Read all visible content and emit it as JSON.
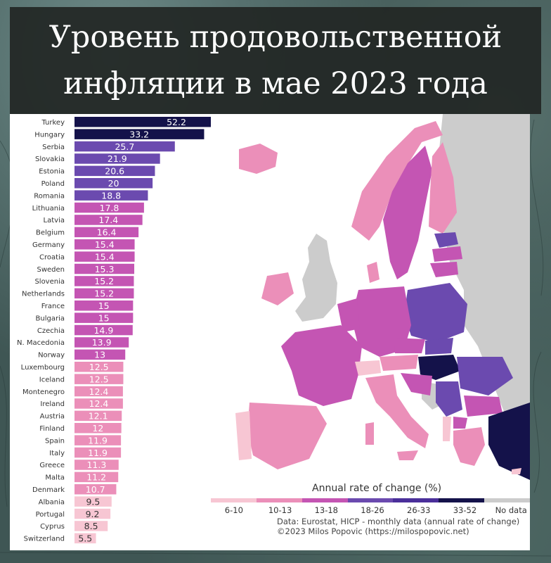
{
  "title": {
    "line1": "Уровень продовольственной",
    "line2": "инфляции в мае 2023 года"
  },
  "colors": {
    "bin_6_10": "#f7c6d3",
    "bin_10_13": "#eb8fb9",
    "bin_13_18": "#c455b3",
    "bin_18_26": "#6b4aaf",
    "bin_26_33": "#4a2f9a",
    "bin_33_52": "#14124a",
    "no_data": "#cccccc"
  },
  "chart_data": {
    "type": "bar",
    "orientation": "horizontal",
    "categories": [
      "Turkey",
      "Hungary",
      "Serbia",
      "Slovakia",
      "Estonia",
      "Poland",
      "Romania",
      "Lithuania",
      "Latvia",
      "Belgium",
      "Germany",
      "Croatia",
      "Sweden",
      "Slovenia",
      "Netherlands",
      "France",
      "Bulgaria",
      "Czechia",
      "N. Macedonia",
      "Norway",
      "Luxembourg",
      "Iceland",
      "Montenegro",
      "Ireland",
      "Austria",
      "Finland",
      "Spain",
      "Italy",
      "Greece",
      "Malta",
      "Denmark",
      "Albania",
      "Portugal",
      "Cyprus",
      "Switzerland"
    ],
    "category_labels": [
      "Turkey",
      "Hungary",
      "Serbia",
      "Slovakia",
      "Estonia",
      "Poland",
      "Romania",
      "Lithuania",
      "Latvia",
      "Belgium",
      "Germany",
      "Croatia",
      "Sweden",
      "Slovenia",
      "Netherlands",
      "France",
      "Bulgaria",
      "Czechia",
      "N. Macedonia",
      "Norway",
      "Luxembourg",
      "Iceland",
      "Montenegro",
      "Ireland",
      "Austria",
      "Finland",
      "Spain",
      "Italy",
      "Greece",
      "Malta",
      "Denmark",
      "Albania",
      "Portugal",
      "Cyprus",
      "Switzerland"
    ],
    "values": [
      52.2,
      33.2,
      25.7,
      21.9,
      20.6,
      20,
      18.8,
      17.8,
      17.4,
      16.4,
      15.4,
      15.4,
      15.3,
      15.2,
      15.2,
      15,
      15,
      14.9,
      13.9,
      13,
      12.5,
      12.5,
      12.4,
      12.4,
      12.1,
      12,
      11.9,
      11.9,
      11.3,
      11.2,
      10.7,
      9.5,
      9.2,
      8.5,
      5.5
    ],
    "value_labels": [
      "52.2",
      "33.2",
      "25.7",
      "21.9",
      "20.6",
      "20",
      "18.8",
      "17.8",
      "17.4",
      "16.4",
      "15.4",
      "15.4",
      "15.3",
      "15.2",
      "15.2",
      "15",
      "15",
      "14.9",
      "13.9",
      "13",
      "12.5",
      "12.5",
      "12.4",
      "12.4",
      "12.1",
      "12",
      "11.9",
      "11.9",
      "11.3",
      "11.2",
      "10.7",
      "9.5",
      "9.2",
      "8.5",
      "5.5"
    ],
    "xlim": [
      0,
      52.2
    ],
    "title": "",
    "xlabel": "",
    "ylabel": ""
  },
  "legend": {
    "title": "Annual rate of change (%)",
    "bins": [
      "6-10",
      "10-13",
      "13-18",
      "18-26",
      "26-33",
      "33-52",
      "No data"
    ],
    "source_line1": "Data: Eurostat, HICP - monthly data (annual rate of change)",
    "source_line2": "©2023 Milos Popovic (https://milospopovic.net)"
  }
}
